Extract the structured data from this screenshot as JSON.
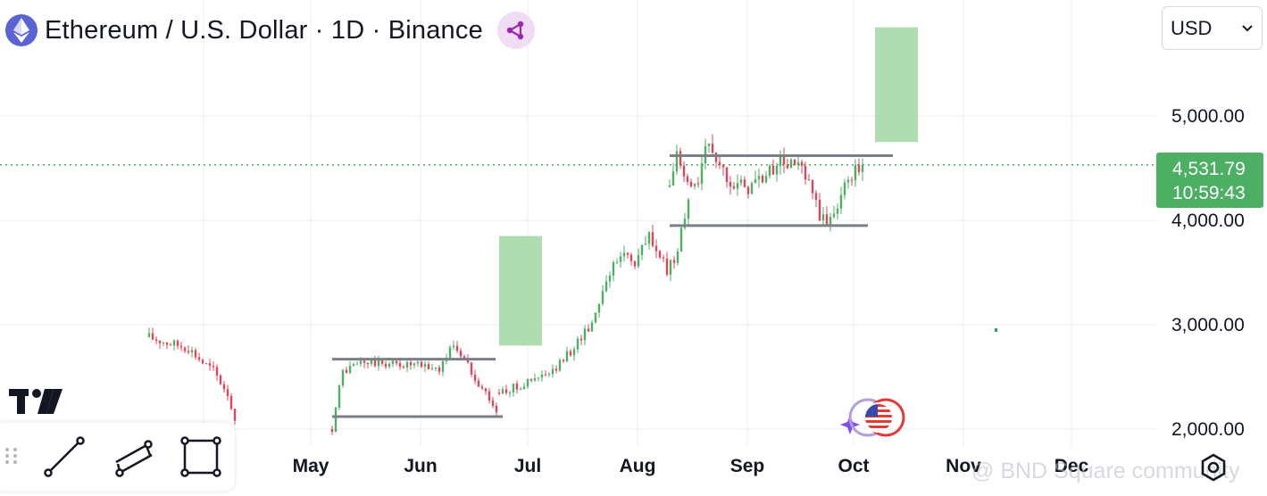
{
  "header": {
    "title": "Ethereum / U.S. Dollar · 1D · Binance",
    "logo_icon": "ethereum-icon",
    "share_icon": "share-icon"
  },
  "currency": {
    "selected": "USD"
  },
  "price_badge": {
    "price": "4,531.79",
    "countdown": "10:59:43"
  },
  "watermark": "@ BND Square community",
  "toolbar": {
    "tools": [
      "trend-line-tool-icon",
      "parallel-channel-tool-icon",
      "rectangle-tool-icon"
    ]
  },
  "colors": {
    "up": "#4caf64",
    "down": "#e0445c",
    "level": "#7b7f86",
    "target": "#a6d8a8",
    "badge": "#4caf64"
  },
  "chart_data": {
    "type": "candlestick",
    "title": "Ethereum / U.S. Dollar · 1D · Binance",
    "ylim": [
      1900,
      5900
    ],
    "y_axis_ticks": [
      "5,000.00",
      "4,000.00",
      "3,000.00",
      "2,000.00"
    ],
    "y_axis_values": [
      5000,
      4000,
      3000,
      2000
    ],
    "x_axis_ticks": [
      "May",
      "Jun",
      "Jul",
      "Aug",
      "Sep",
      "Oct",
      "Nov",
      "Dec"
    ],
    "last_price": 4531.79,
    "grid": true,
    "segments": [
      {
        "name": "march-april-decline",
        "start": "Mar 17",
        "end": "Apr 10",
        "points": [
          [
            0,
            2880
          ],
          [
            6,
            2820
          ],
          [
            11,
            2780
          ],
          [
            15,
            2640
          ],
          [
            18,
            2560
          ],
          [
            22,
            2340
          ],
          [
            24,
            2080
          ]
        ]
      },
      {
        "name": "may-june-range",
        "start": "May 07",
        "end": "Jun 22",
        "points": [
          [
            0,
            2000
          ],
          [
            1,
            2240
          ],
          [
            3,
            2550
          ],
          [
            8,
            2640
          ],
          [
            20,
            2620
          ],
          [
            30,
            2580
          ],
          [
            34,
            2820
          ],
          [
            41,
            2450
          ],
          [
            44,
            2300
          ],
          [
            46,
            2160
          ]
        ]
      },
      {
        "name": "july-aug-breakout",
        "start": "Jun 23",
        "end": "Aug 09",
        "points": [
          [
            0,
            2350
          ],
          [
            6,
            2420
          ],
          [
            15,
            2540
          ],
          [
            20,
            2750
          ],
          [
            26,
            3020
          ],
          [
            30,
            3450
          ],
          [
            35,
            3700
          ],
          [
            38,
            3600
          ],
          [
            42,
            3850
          ],
          [
            44,
            3720
          ],
          [
            47,
            3500
          ],
          [
            50,
            3700
          ],
          [
            51,
            3950
          ],
          [
            53,
            4200
          ]
        ]
      },
      {
        "name": "aug-sep-range",
        "start": "Aug 10",
        "end": "Oct 03",
        "points": [
          [
            0,
            4320
          ],
          [
            2,
            4650
          ],
          [
            4,
            4380
          ],
          [
            7,
            4300
          ],
          [
            9,
            4520
          ],
          [
            11,
            4760
          ],
          [
            14,
            4520
          ],
          [
            17,
            4400
          ],
          [
            21,
            4300
          ],
          [
            28,
            4450
          ],
          [
            30,
            4560
          ],
          [
            36,
            4520
          ],
          [
            40,
            4250
          ],
          [
            42,
            4050
          ],
          [
            44,
            3950
          ],
          [
            46,
            4100
          ],
          [
            48,
            4250
          ],
          [
            51,
            4450
          ],
          [
            54,
            4531.79
          ]
        ]
      }
    ],
    "levels": [
      {
        "label": "resistance-upper",
        "value": 4620,
        "from": "Aug 10",
        "to": "Oct 12"
      },
      {
        "label": "support-upper",
        "value": 3950,
        "from": "Aug 10",
        "to": "Oct 05"
      },
      {
        "label": "resistance-lower",
        "value": 2670,
        "from": "May 07",
        "to": "Jun 22"
      },
      {
        "label": "support-lower",
        "value": 2120,
        "from": "May 07",
        "to": "Jun 24"
      }
    ],
    "target_boxes": [
      {
        "label": "target-box-1",
        "from": "Jun 23",
        "to": "Jul 05",
        "low": 2800,
        "high": 3850
      },
      {
        "label": "target-box-2",
        "from": "Oct 07",
        "to": "Oct 19",
        "low": 4750,
        "high": 5850
      }
    ]
  }
}
